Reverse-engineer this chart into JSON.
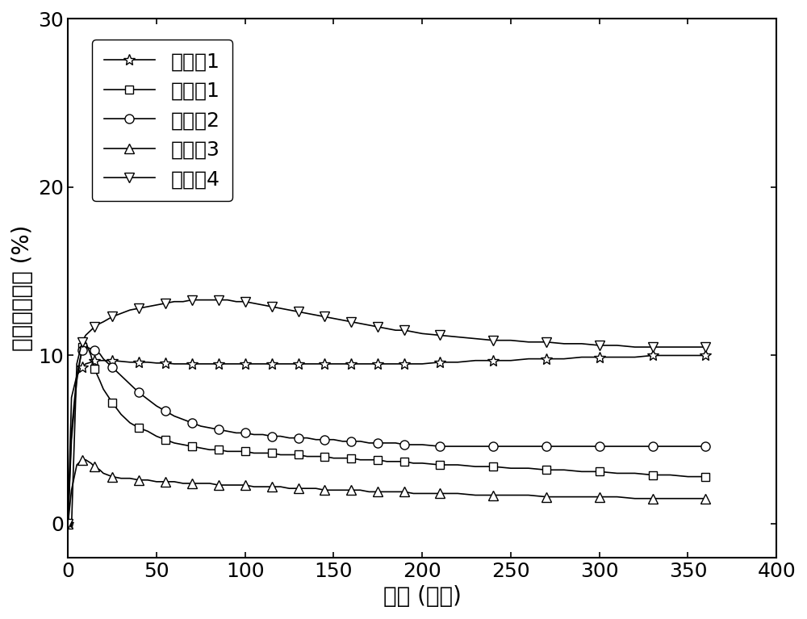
{
  "title": "",
  "xlabel": "时间 (分钟)",
  "ylabel": "一氧化碳产率 (%)",
  "xlim": [
    0,
    400
  ],
  "ylim": [
    -2,
    30
  ],
  "xticks": [
    0,
    50,
    100,
    150,
    200,
    250,
    300,
    350,
    400
  ],
  "yticks": [
    0,
    10,
    20,
    30
  ],
  "legend_labels": [
    "实施例1",
    "对比例1",
    "对比例2",
    "对比例3",
    "对比例4"
  ],
  "legend_loc": "upper left",
  "series": {
    "example1": {
      "x": [
        0,
        2,
        5,
        8,
        10,
        13,
        15,
        18,
        20,
        25,
        30,
        35,
        40,
        45,
        50,
        55,
        60,
        65,
        70,
        75,
        80,
        85,
        90,
        95,
        100,
        105,
        110,
        115,
        120,
        125,
        130,
        135,
        140,
        145,
        150,
        155,
        160,
        165,
        170,
        175,
        180,
        185,
        190,
        195,
        200,
        210,
        220,
        230,
        240,
        250,
        260,
        270,
        280,
        290,
        300,
        310,
        320,
        330,
        340,
        350,
        360
      ],
      "y": [
        0,
        7.5,
        8.8,
        9.3,
        9.5,
        9.6,
        9.7,
        9.7,
        9.7,
        9.7,
        9.65,
        9.6,
        9.6,
        9.6,
        9.55,
        9.55,
        9.5,
        9.5,
        9.5,
        9.5,
        9.5,
        9.5,
        9.5,
        9.5,
        9.5,
        9.5,
        9.5,
        9.5,
        9.5,
        9.5,
        9.5,
        9.5,
        9.5,
        9.5,
        9.5,
        9.5,
        9.5,
        9.5,
        9.5,
        9.5,
        9.5,
        9.5,
        9.5,
        9.5,
        9.5,
        9.6,
        9.6,
        9.7,
        9.7,
        9.7,
        9.8,
        9.8,
        9.8,
        9.9,
        9.9,
        9.9,
        9.9,
        10.0,
        10.0,
        10.0,
        10.0
      ],
      "marker": "*",
      "markersize": 10
    },
    "compare1": {
      "x": [
        0,
        2,
        5,
        8,
        10,
        13,
        15,
        18,
        20,
        25,
        30,
        35,
        40,
        45,
        50,
        55,
        60,
        65,
        70,
        75,
        80,
        85,
        90,
        95,
        100,
        105,
        110,
        115,
        120,
        125,
        130,
        135,
        140,
        145,
        150,
        155,
        160,
        165,
        170,
        175,
        180,
        185,
        190,
        195,
        200,
        210,
        220,
        230,
        240,
        250,
        260,
        270,
        280,
        290,
        300,
        310,
        320,
        330,
        340,
        350,
        360
      ],
      "y": [
        0,
        5.0,
        8.5,
        10.5,
        10.8,
        10.0,
        9.2,
        8.5,
        8.0,
        7.2,
        6.5,
        6.0,
        5.7,
        5.5,
        5.2,
        5.0,
        4.8,
        4.7,
        4.6,
        4.5,
        4.4,
        4.4,
        4.3,
        4.3,
        4.3,
        4.2,
        4.2,
        4.2,
        4.1,
        4.1,
        4.1,
        4.0,
        4.0,
        4.0,
        3.9,
        3.9,
        3.9,
        3.8,
        3.8,
        3.8,
        3.7,
        3.7,
        3.7,
        3.6,
        3.6,
        3.5,
        3.5,
        3.4,
        3.4,
        3.3,
        3.3,
        3.2,
        3.2,
        3.1,
        3.1,
        3.0,
        3.0,
        2.9,
        2.9,
        2.8,
        2.8
      ],
      "marker": "s",
      "markersize": 7
    },
    "compare2": {
      "x": [
        0,
        2,
        5,
        8,
        10,
        13,
        15,
        18,
        20,
        25,
        30,
        35,
        40,
        45,
        50,
        55,
        60,
        65,
        70,
        75,
        80,
        85,
        90,
        95,
        100,
        105,
        110,
        115,
        120,
        125,
        130,
        135,
        140,
        145,
        150,
        155,
        160,
        165,
        170,
        175,
        180,
        185,
        190,
        195,
        200,
        210,
        220,
        230,
        240,
        250,
        260,
        270,
        280,
        290,
        300,
        310,
        320,
        330,
        340,
        350,
        360
      ],
      "y": [
        0,
        5.5,
        8.8,
        10.3,
        10.5,
        10.4,
        10.3,
        10.1,
        9.8,
        9.3,
        8.8,
        8.3,
        7.8,
        7.4,
        7.0,
        6.7,
        6.4,
        6.2,
        6.0,
        5.8,
        5.7,
        5.6,
        5.5,
        5.4,
        5.4,
        5.3,
        5.3,
        5.2,
        5.2,
        5.1,
        5.1,
        5.1,
        5.0,
        5.0,
        5.0,
        4.9,
        4.9,
        4.9,
        4.8,
        4.8,
        4.8,
        4.8,
        4.7,
        4.7,
        4.7,
        4.6,
        4.6,
        4.6,
        4.6,
        4.6,
        4.6,
        4.6,
        4.6,
        4.6,
        4.6,
        4.6,
        4.6,
        4.6,
        4.6,
        4.6,
        4.6
      ],
      "marker": "o",
      "markersize": 8
    },
    "compare3": {
      "x": [
        0,
        2,
        5,
        8,
        10,
        13,
        15,
        18,
        20,
        25,
        30,
        35,
        40,
        45,
        50,
        55,
        60,
        65,
        70,
        75,
        80,
        85,
        90,
        95,
        100,
        105,
        110,
        115,
        120,
        125,
        130,
        135,
        140,
        145,
        150,
        155,
        160,
        165,
        170,
        175,
        180,
        185,
        190,
        195,
        200,
        210,
        220,
        230,
        240,
        250,
        260,
        270,
        280,
        290,
        300,
        310,
        320,
        330,
        340,
        350,
        360
      ],
      "y": [
        0,
        2.0,
        3.5,
        3.8,
        3.8,
        3.6,
        3.4,
        3.2,
        3.0,
        2.8,
        2.7,
        2.7,
        2.6,
        2.6,
        2.5,
        2.5,
        2.5,
        2.4,
        2.4,
        2.4,
        2.4,
        2.3,
        2.3,
        2.3,
        2.3,
        2.2,
        2.2,
        2.2,
        2.2,
        2.1,
        2.1,
        2.1,
        2.1,
        2.0,
        2.0,
        2.0,
        2.0,
        2.0,
        1.9,
        1.9,
        1.9,
        1.9,
        1.9,
        1.8,
        1.8,
        1.8,
        1.8,
        1.7,
        1.7,
        1.7,
        1.7,
        1.6,
        1.6,
        1.6,
        1.6,
        1.6,
        1.5,
        1.5,
        1.5,
        1.5,
        1.5
      ],
      "marker": "^",
      "markersize": 8
    },
    "compare4": {
      "x": [
        0,
        2,
        5,
        8,
        10,
        13,
        15,
        18,
        20,
        25,
        30,
        35,
        40,
        45,
        50,
        55,
        60,
        65,
        70,
        75,
        80,
        85,
        90,
        95,
        100,
        105,
        110,
        115,
        120,
        125,
        130,
        135,
        140,
        145,
        150,
        155,
        160,
        165,
        170,
        175,
        180,
        185,
        190,
        195,
        200,
        210,
        220,
        230,
        240,
        250,
        260,
        270,
        280,
        290,
        300,
        310,
        320,
        330,
        340,
        350,
        360
      ],
      "y": [
        0,
        -0.2,
        9.5,
        10.8,
        11.2,
        11.5,
        11.7,
        11.9,
        12.0,
        12.3,
        12.5,
        12.7,
        12.8,
        12.9,
        13.0,
        13.1,
        13.2,
        13.2,
        13.3,
        13.3,
        13.3,
        13.3,
        13.3,
        13.2,
        13.2,
        13.1,
        13.0,
        12.9,
        12.8,
        12.7,
        12.6,
        12.5,
        12.4,
        12.3,
        12.2,
        12.1,
        12.0,
        11.9,
        11.8,
        11.7,
        11.6,
        11.5,
        11.5,
        11.4,
        11.3,
        11.2,
        11.1,
        11.0,
        10.9,
        10.9,
        10.8,
        10.8,
        10.7,
        10.7,
        10.6,
        10.6,
        10.5,
        10.5,
        10.5,
        10.5,
        10.5
      ],
      "marker": "v",
      "markersize": 8
    }
  },
  "font_size_label": 20,
  "font_size_tick": 18,
  "font_size_legend": 18,
  "line_width": 1.2,
  "background_color": "white"
}
